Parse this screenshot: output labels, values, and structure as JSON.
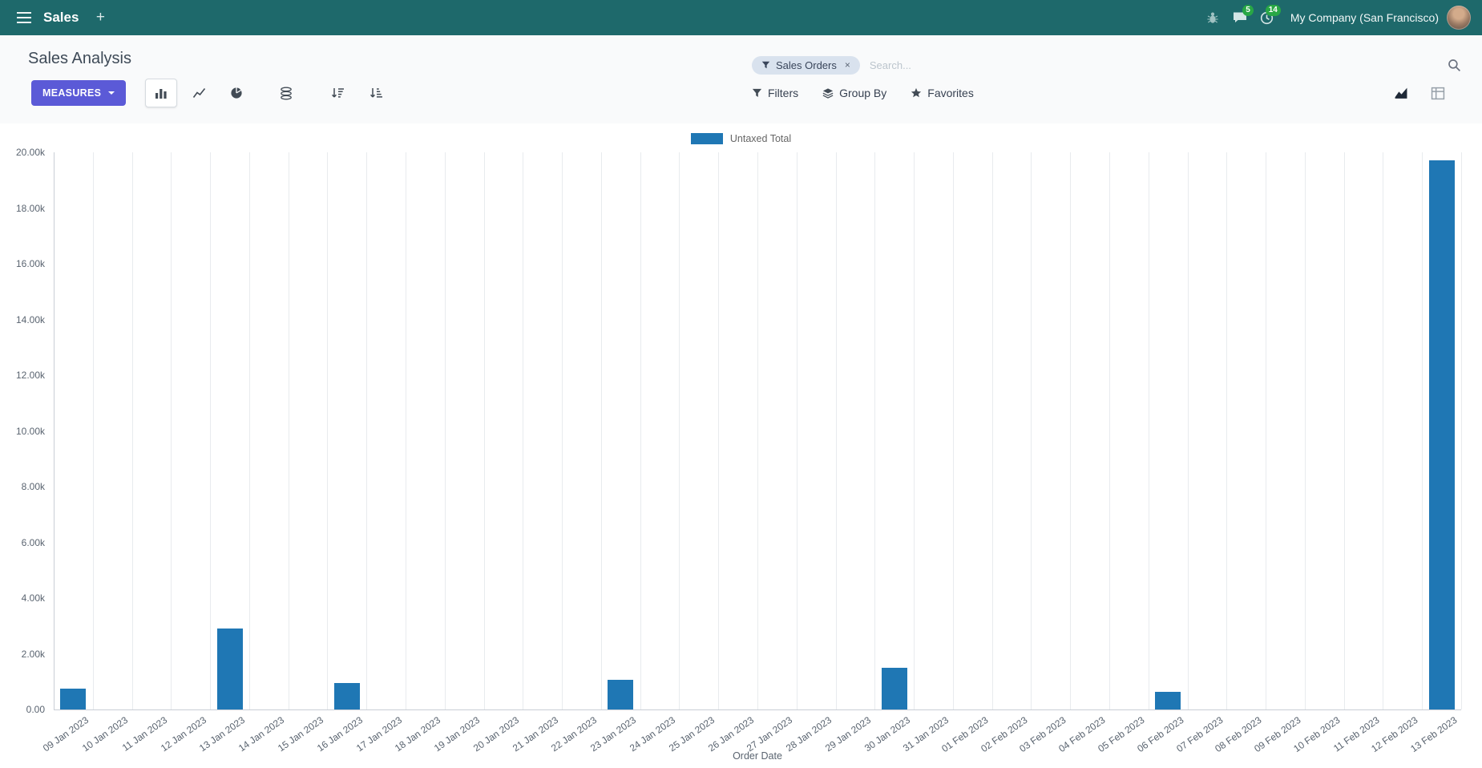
{
  "navbar": {
    "app_name": "Sales",
    "plus_label": "+",
    "company": "My Company (San Francisco)",
    "message_badge": "5",
    "activity_badge": "14"
  },
  "control_panel": {
    "title": "Sales Analysis",
    "measures_label": "MEASURES",
    "filters_label": "Filters",
    "group_by_label": "Group By",
    "favorites_label": "Favorites",
    "search_facet": "Sales Orders",
    "facet_remove": "×",
    "search_placeholder": "Search..."
  },
  "colors": {
    "navbar_bg": "#1e696b",
    "accent": "#5b5ad7",
    "badge_green": "#28a745",
    "bar": "#1f77b4"
  },
  "chart_data": {
    "type": "bar",
    "title": "",
    "legend_label": "Untaxed Total",
    "legend_position": "top",
    "grid": "vertical",
    "xlabel": "Order Date",
    "ylabel": "",
    "ylim": [
      0,
      20000
    ],
    "ytick_step": 2000,
    "ytick_labels": [
      "0.00",
      "2.00k",
      "4.00k",
      "6.00k",
      "8.00k",
      "10.00k",
      "12.00k",
      "14.00k",
      "16.00k",
      "18.00k",
      "20.00k"
    ],
    "bar_color": "#1f77b4",
    "categories": [
      "09 Jan 2023",
      "10 Jan 2023",
      "11 Jan 2023",
      "12 Jan 2023",
      "13 Jan 2023",
      "14 Jan 2023",
      "15 Jan 2023",
      "16 Jan 2023",
      "17 Jan 2023",
      "18 Jan 2023",
      "19 Jan 2023",
      "20 Jan 2023",
      "21 Jan 2023",
      "22 Jan 2023",
      "23 Jan 2023",
      "24 Jan 2023",
      "25 Jan 2023",
      "26 Jan 2023",
      "27 Jan 2023",
      "28 Jan 2023",
      "29 Jan 2023",
      "30 Jan 2023",
      "31 Jan 2023",
      "01 Feb 2023",
      "02 Feb 2023",
      "03 Feb 2023",
      "04 Feb 2023",
      "05 Feb 2023",
      "06 Feb 2023",
      "07 Feb 2023",
      "08 Feb 2023",
      "09 Feb 2023",
      "10 Feb 2023",
      "11 Feb 2023",
      "12 Feb 2023",
      "13 Feb 2023"
    ],
    "values": [
      750,
      0,
      0,
      0,
      2900,
      0,
      0,
      950,
      0,
      0,
      0,
      0,
      0,
      0,
      1080,
      0,
      0,
      0,
      0,
      0,
      0,
      1500,
      0,
      0,
      0,
      0,
      0,
      0,
      640,
      0,
      0,
      0,
      0,
      0,
      0,
      19700
    ]
  }
}
